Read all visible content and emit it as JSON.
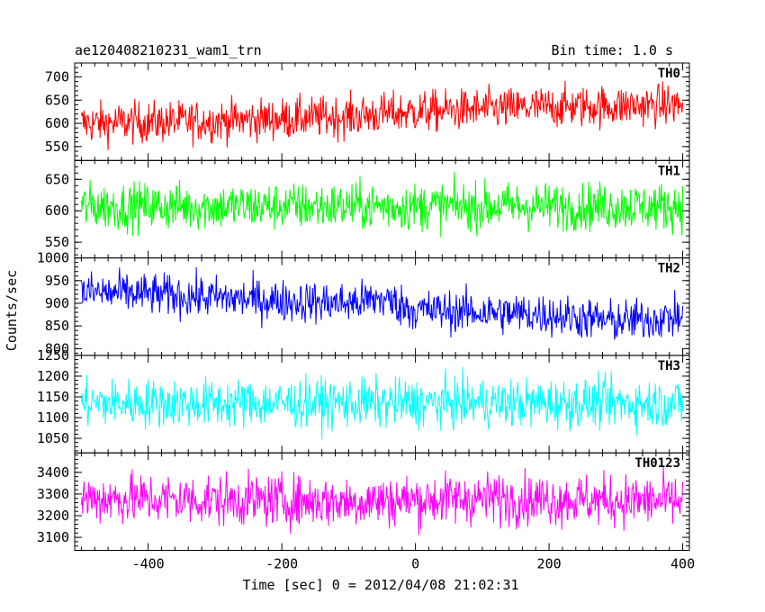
{
  "header": {
    "title": "ae120408210231_wam1_trn",
    "bin_time": "Bin time: 1.0 s"
  },
  "chart_data": {
    "type": "line",
    "title": "ae120408210231_wam1_trn",
    "xlabel": "Time [sec] 0 = 2012/04/08 21:02:31",
    "ylabel": "Counts/sec",
    "xlim": [
      -510,
      410
    ],
    "x_ticks": [
      -400,
      -200,
      0,
      200,
      400
    ],
    "x_start": -500,
    "x_end": 400,
    "x_step": 1,
    "series": [
      {
        "name": "TH0",
        "color": "#ff0000",
        "ylim": [
          520,
          730
        ],
        "y_ticks": [
          550,
          600,
          650,
          700
        ],
        "trend": [
          [
            -500,
            600
          ],
          [
            -300,
            605
          ],
          [
            -100,
            615
          ],
          [
            0,
            625
          ],
          [
            100,
            630
          ],
          [
            200,
            635
          ],
          [
            400,
            640
          ]
        ],
        "noise_amplitude": 32
      },
      {
        "name": "TH1",
        "color": "#00ff00",
        "ylim": [
          525,
          680
        ],
        "y_ticks": [
          550,
          600,
          650
        ],
        "trend": [
          [
            -500,
            607
          ],
          [
            400,
            607
          ]
        ],
        "noise_amplitude": 27
      },
      {
        "name": "TH2",
        "color": "#0000ff",
        "ylim": [
          785,
          1000
        ],
        "y_ticks": [
          800,
          850,
          900,
          950,
          1000
        ],
        "trend": [
          [
            -500,
            925
          ],
          [
            -400,
            920
          ],
          [
            -200,
            905
          ],
          [
            -100,
            900
          ],
          [
            -50,
            910
          ],
          [
            0,
            885
          ],
          [
            200,
            875
          ],
          [
            300,
            860
          ],
          [
            400,
            870
          ]
        ],
        "noise_amplitude": 33
      },
      {
        "name": "TH3",
        "color": "#00ffff",
        "ylim": [
          1015,
          1250
        ],
        "y_ticks": [
          1050,
          1100,
          1150,
          1200,
          1250
        ],
        "trend": [
          [
            -500,
            1135
          ],
          [
            400,
            1135
          ]
        ],
        "noise_amplitude": 42
      },
      {
        "name": "TH0123",
        "color": "#ff00ff",
        "ylim": [
          3040,
          3490
        ],
        "y_ticks": [
          3100,
          3200,
          3300,
          3400
        ],
        "trend": [
          [
            -500,
            3280
          ],
          [
            -100,
            3265
          ],
          [
            100,
            3280
          ],
          [
            400,
            3265
          ]
        ],
        "noise_amplitude": 85
      }
    ],
    "grid": false
  }
}
